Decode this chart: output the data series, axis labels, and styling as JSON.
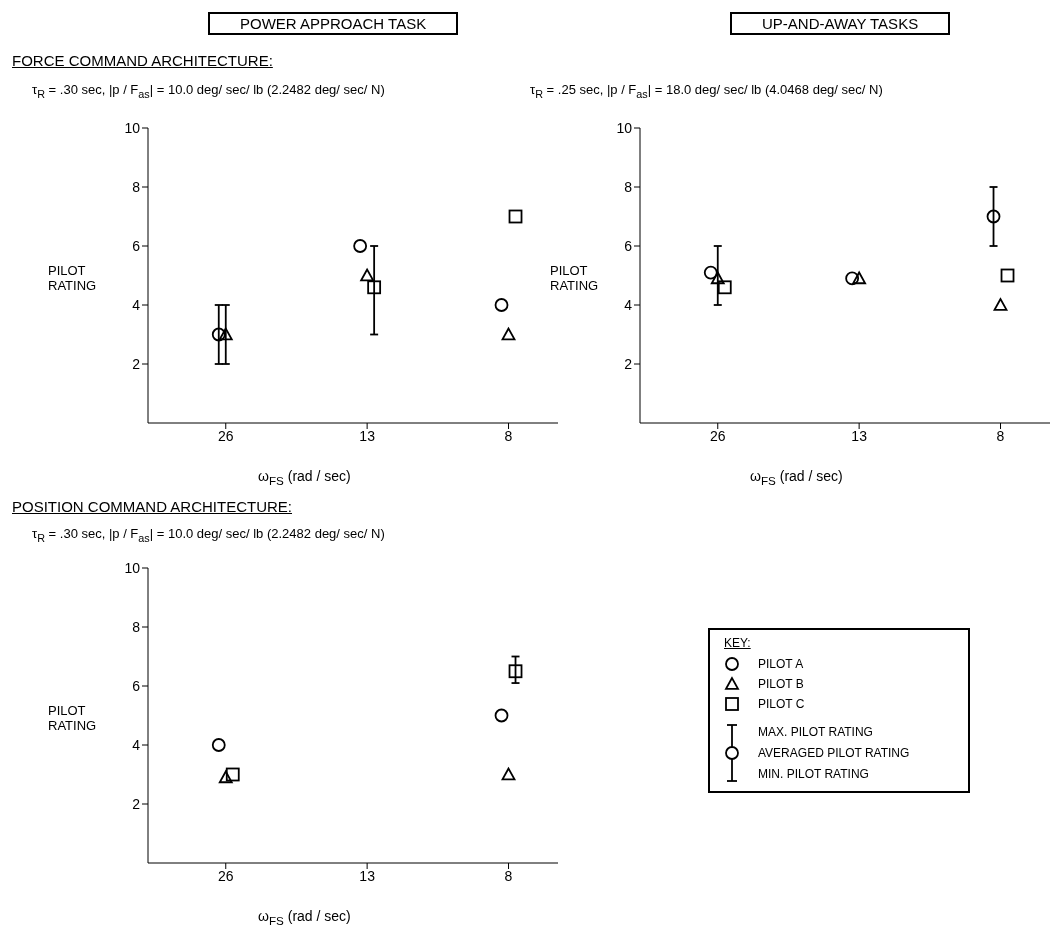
{
  "chart_data": [
    {
      "type": "scatter",
      "title": "POWER APPROACH TASK",
      "annotations": [
        "FORCE COMMAND ARCHITECTURE:"
      ],
      "subtitle": "τ$_{R}$ = .30 sec, |p / F$_{as}$| = 10.0 deg/ sec/ lb (2.2482 deg/ sec/ N)",
      "xlabel": "ω$_{FS}$ (rad / sec)",
      "ylabel": "PILOT RATING",
      "categories": [
        "26",
        "13",
        "8"
      ],
      "ylim": [
        0,
        10
      ],
      "yticks": [
        2,
        4,
        6,
        8,
        10
      ],
      "series": [
        {
          "marker": "circle",
          "color": "#000000",
          "values": [
            3,
            6,
            4
          ],
          "errors": [
            [
              2,
              4
            ],
            null,
            null
          ]
        },
        {
          "marker": "triangle",
          "color": "#000000",
          "values": [
            3,
            5,
            3
          ],
          "errors": [
            [
              2,
              4
            ],
            null,
            null
          ]
        },
        {
          "marker": "square",
          "color": "#000000",
          "values": [
            null,
            4.6,
            7
          ],
          "errors": [
            null,
            [
              3,
              6
            ],
            null
          ]
        }
      ]
    },
    {
      "type": "scatter",
      "title": "UP-AND-AWAY TASKS",
      "subtitle": "τ$_{R}$ = .25 sec, |p / F$_{as}$| = 18.0 deg/ sec/ lb (4.0468 deg/ sec/ N)",
      "xlabel": "ω$_{FS}$ (rad / sec)",
      "ylabel": "PILOT RATING",
      "categories": [
        "26",
        "13",
        "8"
      ],
      "ylim": [
        0,
        10
      ],
      "yticks": [
        2,
        4,
        6,
        8,
        10
      ],
      "series": [
        {
          "marker": "circle",
          "color": "#000000",
          "values": [
            5.1,
            4.9,
            7
          ],
          "errors": [
            null,
            null,
            [
              6,
              8
            ]
          ]
        },
        {
          "marker": "triangle",
          "color": "#000000",
          "values": [
            4.9,
            4.9,
            4
          ],
          "errors": [
            [
              4,
              6
            ],
            null,
            null
          ]
        },
        {
          "marker": "square",
          "color": "#000000",
          "values": [
            4.6,
            null,
            5
          ]
        }
      ]
    },
    {
      "type": "scatter",
      "title": "POSITION COMMAND ARCHITECTURE:",
      "subtitle": "τ$_{R}$ = .30 sec, |p / F$_{as}$| = 10.0 deg/ sec/ lb (2.2482 deg/ sec/ N)",
      "xlabel": "ω$_{FS}$ (rad / sec)",
      "ylabel": "PILOT RATING",
      "categories": [
        "26",
        "13",
        "8"
      ],
      "ylim": [
        0,
        10
      ],
      "yticks": [
        2,
        4,
        6,
        8,
        10
      ],
      "legend": "right",
      "legend_title": "KEY:",
      "annotations": [
        "MAX. PILOT RATING",
        "AVERAGED PILOT RATING",
        "MIN. PILOT RATING"
      ],
      "series": [
        {
          "name": "PILOT A",
          "marker": "circle",
          "color": "#000000",
          "values": [
            4,
            null,
            5
          ]
        },
        {
          "name": "PILOT B",
          "marker": "triangle",
          "color": "#000000",
          "values": [
            2.9,
            null,
            3
          ]
        },
        {
          "name": "PILOT C",
          "marker": "square",
          "color": "#000000",
          "values": [
            3,
            null,
            6.5
          ],
          "errors": [
            null,
            null,
            [
              6.1,
              7
            ]
          ]
        }
      ]
    }
  ]
}
